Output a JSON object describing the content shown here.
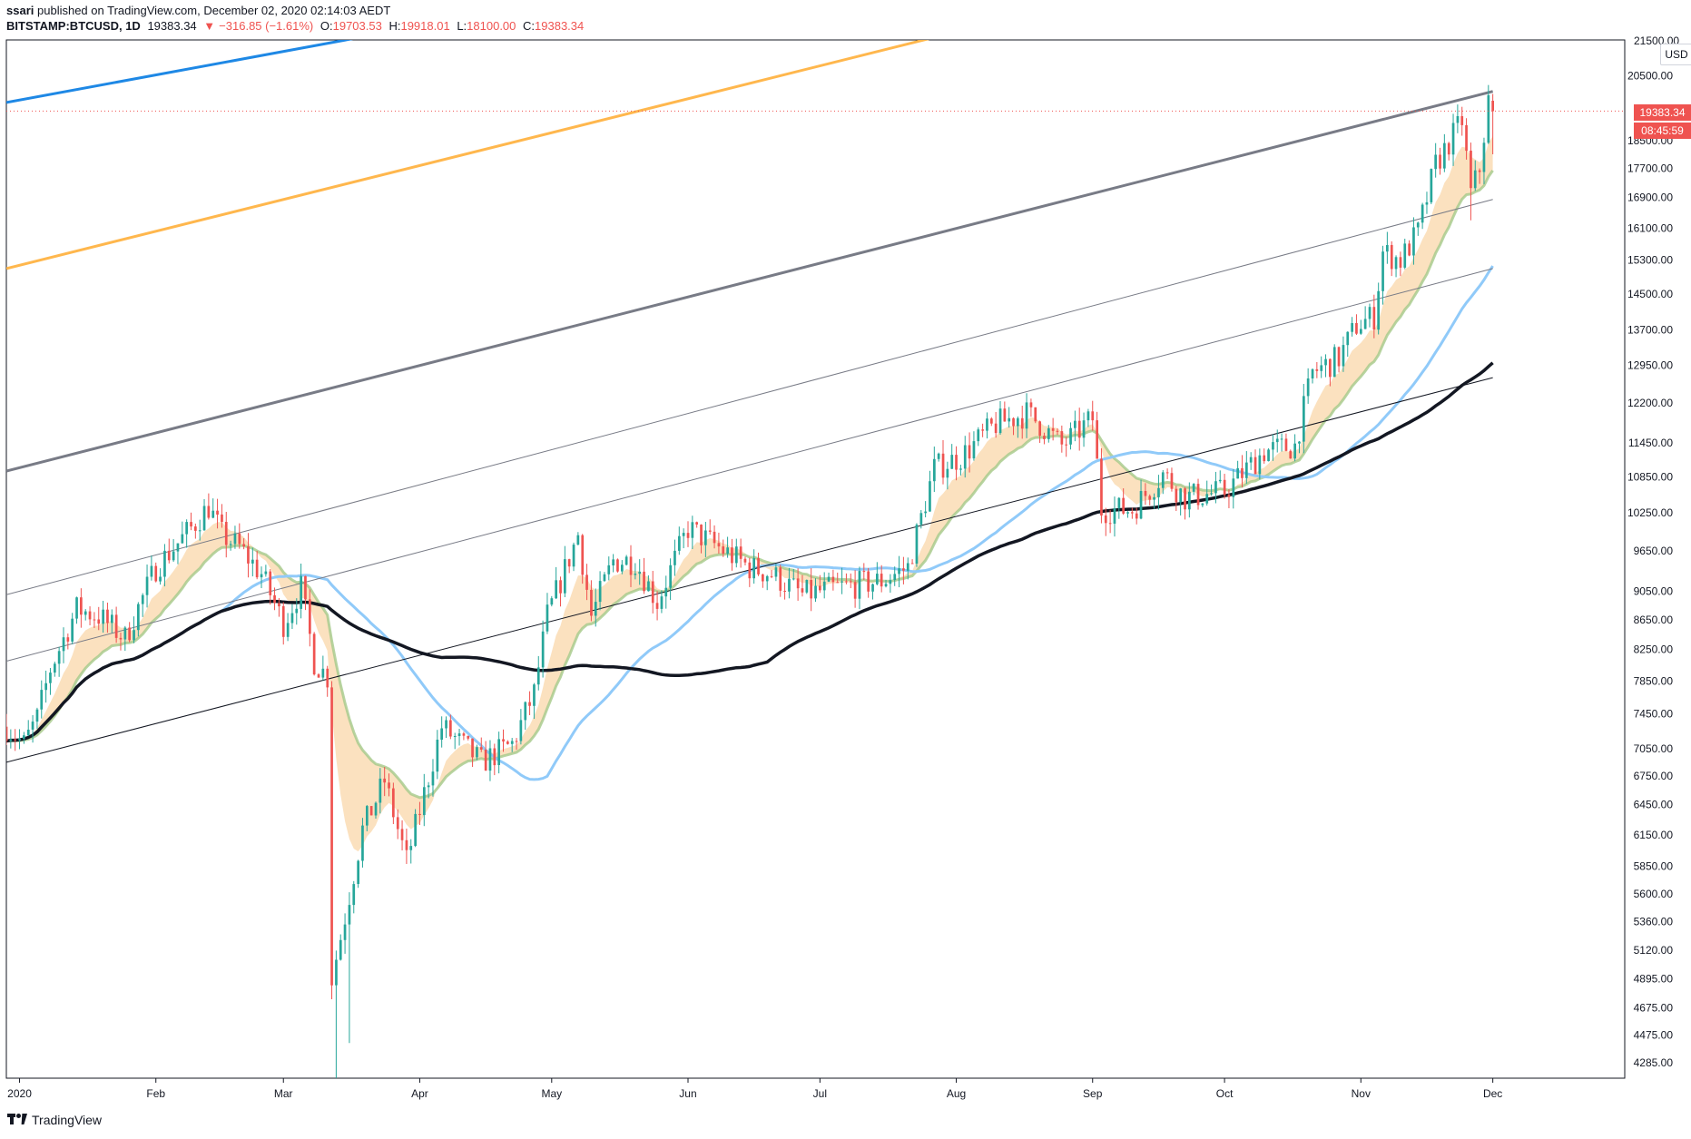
{
  "header": {
    "author": "ssari",
    "published_text": "published on TradingView.com, December 02, 2020 02:14:03 AEDT",
    "symbol": "BITSTAMP:BTCUSD, 1D",
    "last": "19383.34",
    "change_arrow": "▼",
    "change": "−316.85 (−1.61%)",
    "o_label": "O:",
    "o_value": "19703.53",
    "h_label": "H:",
    "h_value": "19918.01",
    "l_label": "L:",
    "l_value": "18100.00",
    "c_label": "C:",
    "c_value": "19383.34"
  },
  "price_scale": {
    "currency_button": "USD",
    "current_price_tag": "19383.34",
    "countdown_tag": "08:45:59",
    "top_partial_label": "21500.00"
  },
  "footer": {
    "brand": "TradingView"
  },
  "colors": {
    "up": "#26a69a",
    "down": "#ef5350",
    "ema_band": "#f7c98b",
    "ema_fast": "#a5c98a",
    "sma_blue": "#90caf9",
    "sma_black": "#131722",
    "blue_line": "#1e88e5",
    "orange_line": "#ffb74d",
    "gray_channel": "#787b86"
  },
  "chart_data": {
    "type": "candlestick",
    "symbol": "BITSTAMP:BTCUSD",
    "interval": "1D",
    "y_axis": {
      "scale": "log",
      "ticks": [
        "20500.00",
        "19383.34",
        "18500.00",
        "17700.00",
        "16900.00",
        "16100.00",
        "15300.00",
        "14500.00",
        "13700.00",
        "12950.00",
        "12200.00",
        "11450.00",
        "10850.00",
        "10250.00",
        "9650.00",
        "9050.00",
        "8650.00",
        "8250.00",
        "7850.00",
        "7450.00",
        "7050.00",
        "6750.00",
        "6450.00",
        "6150.00",
        "5850.00",
        "5600.00",
        "5360.00",
        "5120.00",
        "4895.00",
        "4675.00",
        "4475.00",
        "4285.00"
      ],
      "tick_values": [
        20500,
        18500,
        17700,
        16900,
        16100,
        15300,
        14500,
        13700,
        12950,
        12200,
        11450,
        10850,
        10250,
        9650,
        9050,
        8650,
        8250,
        7850,
        7450,
        7050,
        6750,
        6450,
        6150,
        5850,
        5600,
        5360,
        5120,
        4895,
        4675,
        4475,
        4285
      ],
      "range": [
        4180,
        21700
      ]
    },
    "x_axis": {
      "start": "2019-12-29",
      "end": "2020-12-31",
      "months": [
        {
          "label": "2020",
          "date": "2020-01-01"
        },
        {
          "label": "Feb",
          "date": "2020-02-01"
        },
        {
          "label": "Mar",
          "date": "2020-03-01"
        },
        {
          "label": "Apr",
          "date": "2020-04-01"
        },
        {
          "label": "May",
          "date": "2020-05-01"
        },
        {
          "label": "Jun",
          "date": "2020-06-01"
        },
        {
          "label": "Jul",
          "date": "2020-07-01"
        },
        {
          "label": "Aug",
          "date": "2020-08-01"
        },
        {
          "label": "Sep",
          "date": "2020-09-01"
        },
        {
          "label": "Oct",
          "date": "2020-10-01"
        },
        {
          "label": "Nov",
          "date": "2020-11-01"
        },
        {
          "label": "Dec",
          "date": "2020-12-01"
        }
      ]
    },
    "anchors": [
      [
        "2019-12-29",
        7300
      ],
      [
        "2020-01-02",
        7100
      ],
      [
        "2020-01-05",
        7400
      ],
      [
        "2020-01-08",
        8000
      ],
      [
        "2020-01-14",
        8800
      ],
      [
        "2020-01-19",
        8700
      ],
      [
        "2020-01-25",
        8400
      ],
      [
        "2020-02-01",
        9400
      ],
      [
        "2020-02-09",
        10000
      ],
      [
        "2020-02-13",
        10350
      ],
      [
        "2020-02-16",
        9900
      ],
      [
        "2020-02-20",
        9700
      ],
      [
        "2020-02-25",
        9300
      ],
      [
        "2020-03-01",
        8600
      ],
      [
        "2020-03-05",
        9100
      ],
      [
        "2020-03-08",
        8100
      ],
      [
        "2020-03-11",
        7900
      ],
      [
        "2020-03-12",
        4900
      ],
      [
        "2020-03-15",
        5400
      ],
      [
        "2020-03-19",
        6200
      ],
      [
        "2020-03-24",
        6700
      ],
      [
        "2020-03-29",
        5900
      ],
      [
        "2020-04-06",
        7300
      ],
      [
        "2020-04-15",
        6900
      ],
      [
        "2020-04-22",
        7100
      ],
      [
        "2020-04-27",
        7700
      ],
      [
        "2020-04-30",
        8700
      ],
      [
        "2020-05-07",
        9900
      ],
      [
        "2020-05-10",
        8700
      ],
      [
        "2020-05-15",
        9500
      ],
      [
        "2020-05-20",
        9500
      ],
      [
        "2020-05-25",
        8900
      ],
      [
        "2020-06-01",
        10000
      ],
      [
        "2020-06-08",
        9700
      ],
      [
        "2020-06-15",
        9400
      ],
      [
        "2020-06-20",
        9300
      ],
      [
        "2020-06-27",
        9000
      ],
      [
        "2020-07-05",
        9100
      ],
      [
        "2020-07-15",
        9200
      ],
      [
        "2020-07-21",
        9400
      ],
      [
        "2020-07-27",
        11000
      ],
      [
        "2020-08-02",
        11200
      ],
      [
        "2020-08-10",
        11800
      ],
      [
        "2020-08-17",
        12000
      ],
      [
        "2020-08-20",
        11800
      ],
      [
        "2020-08-25",
        11400
      ],
      [
        "2020-09-01",
        11900
      ],
      [
        "2020-09-03",
        10300
      ],
      [
        "2020-09-10",
        10300
      ],
      [
        "2020-09-17",
        10900
      ],
      [
        "2020-09-22",
        10500
      ],
      [
        "2020-10-01",
        10600
      ],
      [
        "2020-10-10",
        11300
      ],
      [
        "2020-10-17",
        11400
      ],
      [
        "2020-10-21",
        12800
      ],
      [
        "2020-10-27",
        13100
      ],
      [
        "2020-10-31",
        13800
      ],
      [
        "2020-11-04",
        14000
      ],
      [
        "2020-11-06",
        15500
      ],
      [
        "2020-11-10",
        15300
      ],
      [
        "2020-11-14",
        16000
      ],
      [
        "2020-11-18",
        17800
      ],
      [
        "2020-11-24",
        19100
      ],
      [
        "2020-11-26",
        17000
      ],
      [
        "2020-11-28",
        17700
      ],
      [
        "2020-11-30",
        19700
      ],
      [
        "2020-12-01",
        19383
      ]
    ],
    "channel_lines": [
      {
        "name": "blue",
        "color": "blue_line",
        "width": 3,
        "p1": [
          "2019-12-29",
          19650
        ],
        "p2": [
          "2020-03-08",
          21500
        ]
      },
      {
        "name": "orange",
        "color": "orange_line",
        "width": 3,
        "p1": [
          "2019-12-29",
          15100
        ],
        "p2": [
          "2020-07-22",
          21600
        ]
      },
      {
        "name": "upper-channel",
        "color": "gray_channel",
        "width": 3,
        "p1": [
          "2019-12-29",
          10950
        ],
        "p2": [
          "2020-12-01",
          20000
        ]
      },
      {
        "name": "mid-channel",
        "color": "gray_channel",
        "width": 1,
        "p1": [
          "2019-12-29",
          9000
        ],
        "p2": [
          "2020-12-01",
          16850
        ]
      },
      {
        "name": "lower-mid-channel",
        "color": "gray_channel",
        "width": 1,
        "p1": [
          "2019-12-29",
          8100
        ],
        "p2": [
          "2020-12-01",
          15100
        ]
      },
      {
        "name": "lower-channel",
        "color": "sma_black",
        "width": 1,
        "p1": [
          "2019-12-29",
          6900
        ],
        "p2": [
          "2020-12-01",
          12700
        ]
      }
    ],
    "current_price": 19383.34
  }
}
